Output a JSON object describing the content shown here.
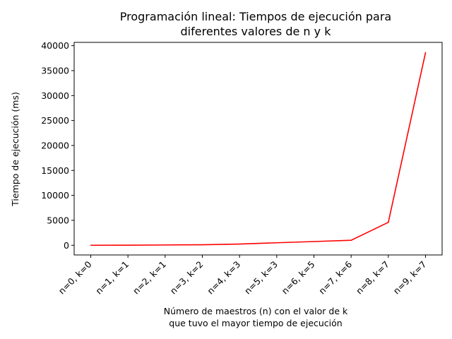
{
  "chart_data": {
    "type": "line",
    "title_lines": [
      "Programación lineal: Tiempos de ejecución para",
      "diferentes valores de n y k"
    ],
    "xlabel_lines": [
      "Número de maestros (n) con el valor de k",
      "que tuvo el mayor tiempo de ejecución"
    ],
    "ylabel": "Tiempo de ejecución (ms)",
    "categories": [
      "n=0, k=0",
      "n=1, k=1",
      "n=2, k=1",
      "n=3, k=2",
      "n=4, k=3",
      "n=5, k=3",
      "n=6, k=5",
      "n=7, k=6",
      "n=8, k=7",
      "n=9, k=7"
    ],
    "values": [
      5,
      20,
      60,
      110,
      250,
      500,
      750,
      1000,
      4600,
      38600
    ],
    "ylim": [
      -1940,
      40660
    ],
    "yticks": [
      0,
      5000,
      10000,
      15000,
      20000,
      25000,
      30000,
      35000,
      40000
    ],
    "ytick_labels": [
      "0",
      "5000",
      "10000",
      "15000",
      "20000",
      "25000",
      "30000",
      "35000",
      "40000"
    ],
    "line_color": "#ff0000",
    "grid": false,
    "legend": "none"
  }
}
